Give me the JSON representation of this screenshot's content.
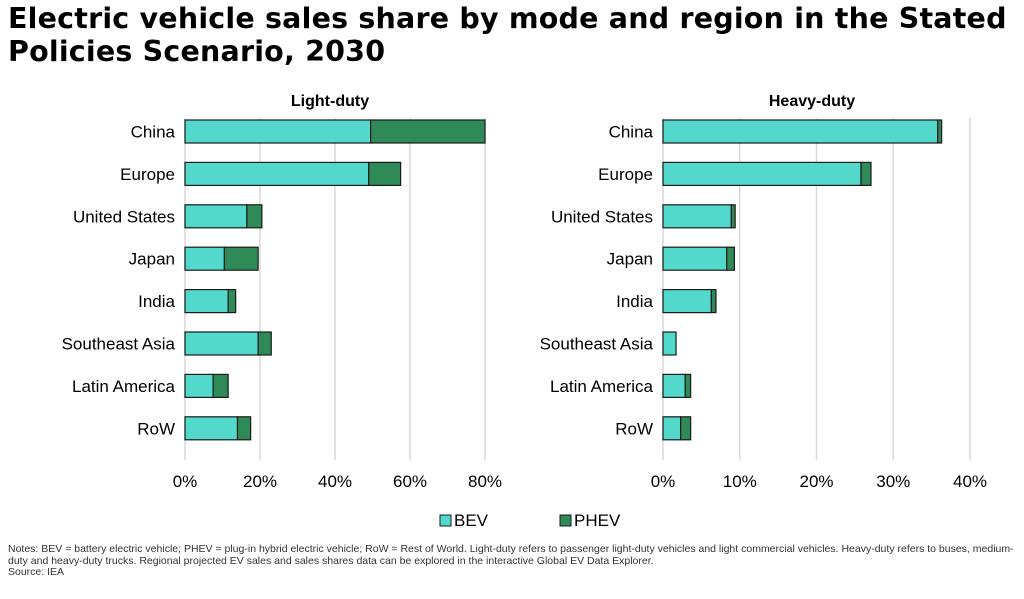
{
  "title": "Electric vehicle sales share by mode and region in the Stated Policies Scenario, 2030",
  "colors": {
    "bev": "#52d9cc",
    "phev": "#2e8b57",
    "grid": "#d9d9d9",
    "outline": "#1a1a1a"
  },
  "chart_data": [
    {
      "type": "bar",
      "orientation": "horizontal",
      "stacked": true,
      "title": "Light-duty",
      "categories": [
        "China",
        "Europe",
        "United States",
        "Japan",
        "India",
        "Southeast Asia",
        "Latin America",
        "RoW"
      ],
      "series": [
        {
          "name": "BEV",
          "values": [
            49.5,
            49,
            16.5,
            10.5,
            11.5,
            19.5,
            7.5,
            14
          ]
        },
        {
          "name": "PHEV",
          "values": [
            30.5,
            8.5,
            4,
            9,
            2,
            3.5,
            4,
            3.5
          ]
        }
      ],
      "xlim": [
        0,
        80
      ],
      "xticks": [
        0,
        20,
        40,
        60,
        80
      ],
      "xtick_labels": [
        "0%",
        "20%",
        "40%",
        "60%",
        "80%"
      ],
      "xlabel": "",
      "ylabel": "",
      "grid": true
    },
    {
      "type": "bar",
      "orientation": "horizontal",
      "stacked": true,
      "title": "Heavy-duty",
      "categories": [
        "China",
        "Europe",
        "United States",
        "Japan",
        "India",
        "Southeast Asia",
        "Latin America",
        "RoW"
      ],
      "series": [
        {
          "name": "BEV",
          "values": [
            35.8,
            25.8,
            8.9,
            8.3,
            6.3,
            1.7,
            2.9,
            2.3
          ]
        },
        {
          "name": "PHEV",
          "values": [
            0.5,
            1.3,
            0.5,
            1,
            0.6,
            0,
            0.7,
            1.3
          ]
        }
      ],
      "xlim": [
        0,
        40
      ],
      "xticks": [
        0,
        10,
        20,
        30,
        40
      ],
      "xtick_labels": [
        "0%",
        "10%",
        "20%",
        "30%",
        "40%"
      ],
      "xlabel": "",
      "ylabel": "",
      "grid": true
    }
  ],
  "legend": {
    "position": "bottom-center",
    "items": [
      "BEV",
      "PHEV"
    ]
  },
  "notes": "Notes: BEV = battery electric vehicle; PHEV = plug-in hybrid electric vehicle; RoW = Rest of World. Light-duty refers to passenger light-duty vehicles and light commercial vehicles. Heavy-duty refers to buses, medium-duty and heavy-duty trucks. Regional projected EV sales and sales shares data can be explored in the interactive Global EV Data Explorer.",
  "source": "Source: IEA"
}
